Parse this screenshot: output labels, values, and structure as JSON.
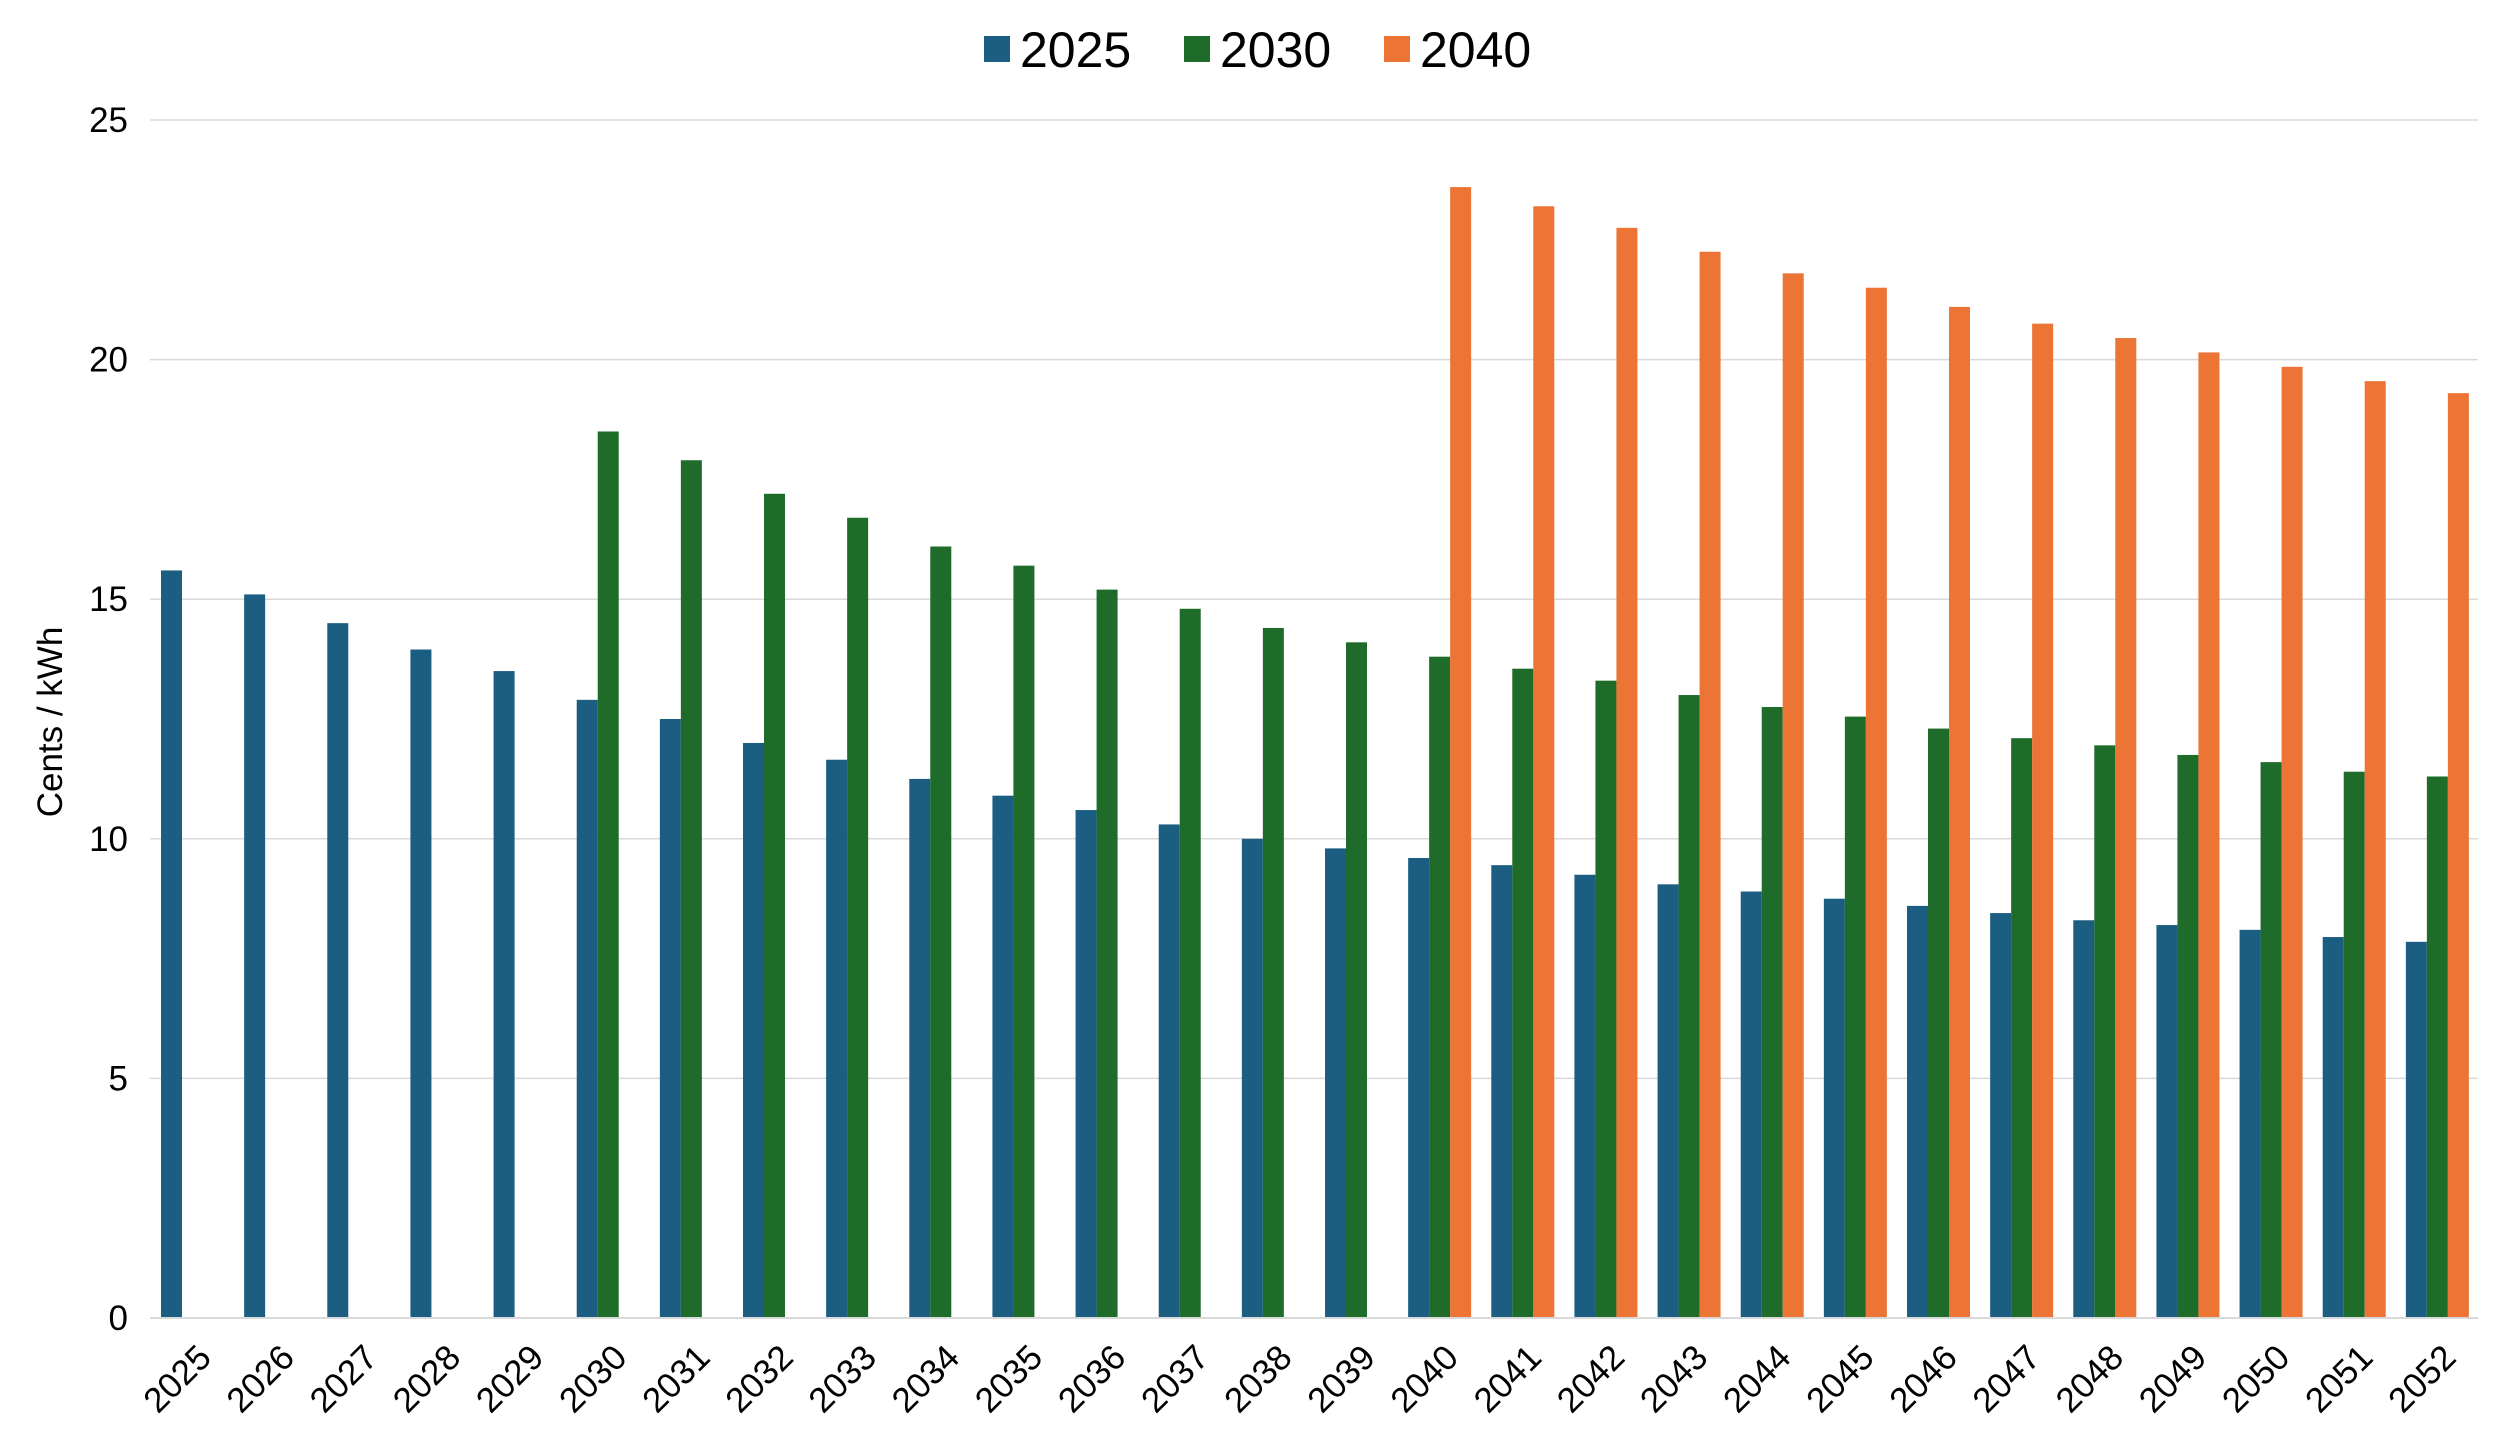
{
  "chart_data": {
    "type": "bar",
    "title": "",
    "xlabel": "",
    "ylabel": "Cents / kWh",
    "ylim": [
      0,
      25
    ],
    "yticks": [
      "0",
      "5",
      "10",
      "15",
      "20",
      "25"
    ],
    "grid": true,
    "legend_position": "top-center",
    "categories": [
      "2025",
      "2026",
      "2027",
      "2028",
      "2029",
      "2030",
      "2031",
      "2032",
      "2033",
      "2034",
      "2035",
      "2036",
      "2037",
      "2038",
      "2039",
      "2040",
      "2041",
      "2042",
      "2043",
      "2044",
      "2045",
      "2046",
      "2047",
      "2048",
      "2049",
      "2050",
      "2051",
      "2052"
    ],
    "series": [
      {
        "name": "2025",
        "color": "#1b5e82",
        "values": [
          15.6,
          15.1,
          14.5,
          13.95,
          13.5,
          12.9,
          12.5,
          12.0,
          11.65,
          11.25,
          10.9,
          10.6,
          10.3,
          10.0,
          9.8,
          9.6,
          9.45,
          9.25,
          9.05,
          8.9,
          8.75,
          8.6,
          8.45,
          8.3,
          8.2,
          8.1,
          7.95,
          7.85
        ]
      },
      {
        "name": "2030",
        "color": "#1e6b2a",
        "values": [
          null,
          null,
          null,
          null,
          null,
          18.5,
          17.9,
          17.2,
          16.7,
          16.1,
          15.7,
          15.2,
          14.8,
          14.4,
          14.1,
          13.8,
          13.55,
          13.3,
          13.0,
          12.75,
          12.55,
          12.3,
          12.1,
          11.95,
          11.75,
          11.6,
          11.4,
          11.3
        ]
      },
      {
        "name": "2040",
        "color": "#ec7435",
        "values": [
          null,
          null,
          null,
          null,
          null,
          null,
          null,
          null,
          null,
          null,
          null,
          null,
          null,
          null,
          null,
          23.6,
          23.2,
          22.75,
          22.25,
          21.8,
          21.5,
          21.1,
          20.75,
          20.45,
          20.15,
          19.85,
          19.55,
          19.3
        ]
      }
    ]
  }
}
